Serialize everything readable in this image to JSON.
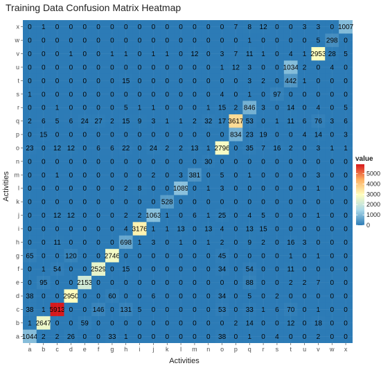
{
  "chart_data": {
    "type": "heatmap",
    "title": "Training Data Confusion Matrix Heatmap",
    "xlabel": "Activities",
    "ylabel": "Activities",
    "x_categories": [
      "a",
      "b",
      "c",
      "d",
      "e",
      "f",
      "g",
      "h",
      "i",
      "j",
      "k",
      "l",
      "m",
      "n",
      "o",
      "p",
      "q",
      "r",
      "s",
      "t",
      "u",
      "v",
      "w",
      "x"
    ],
    "y_categories": [
      "a",
      "b",
      "c",
      "d",
      "e",
      "f",
      "g",
      "h",
      "i",
      "j",
      "k",
      "l",
      "m",
      "n",
      "o",
      "p",
      "q",
      "r",
      "s",
      "t",
      "u",
      "v",
      "w",
      "x"
    ],
    "grid": true,
    "legend": {
      "title": "value",
      "placement": "right",
      "ticks": [
        0,
        1000,
        2000,
        3000,
        4000,
        5000
      ],
      "range": [
        0,
        5913
      ],
      "colors": [
        "#2c7bb6",
        "#abd9e9",
        "#ffffbf",
        "#fdae61",
        "#d7191c"
      ]
    },
    "values": [
      [
        1044,
        2,
        2,
        26,
        0,
        0,
        33,
        1,
        0,
        0,
        0,
        0,
        0,
        0,
        38,
        0,
        1,
        0,
        4,
        0,
        0,
        2,
        0,
        0
      ],
      [
        1,
        2647,
        0,
        0,
        59,
        0,
        0,
        0,
        0,
        0,
        0,
        0,
        0,
        0,
        0,
        2,
        14,
        0,
        0,
        12,
        0,
        18,
        0,
        0
      ],
      [
        38,
        1,
        5913,
        0,
        0,
        146,
        0,
        131,
        5,
        0,
        0,
        0,
        0,
        0,
        53,
        0,
        33,
        1,
        6,
        70,
        0,
        1,
        0,
        0
      ],
      [
        38,
        0,
        0,
        2950,
        0,
        0,
        60,
        0,
        0,
        6,
        0,
        0,
        0,
        0,
        34,
        0,
        5,
        0,
        2,
        0,
        0,
        0,
        0,
        0
      ],
      [
        0,
        95,
        0,
        0,
        2153,
        0,
        0,
        0,
        0,
        0,
        0,
        0,
        0,
        0,
        0,
        0,
        88,
        0,
        0,
        2,
        2,
        7,
        0,
        0
      ],
      [
        0,
        1,
        54,
        0,
        0,
        2529,
        0,
        15,
        0,
        0,
        0,
        0,
        0,
        0,
        34,
        0,
        54,
        0,
        0,
        11,
        0,
        0,
        0,
        0
      ],
      [
        65,
        0,
        0,
        120,
        0,
        0,
        2746,
        0,
        0,
        0,
        0,
        0,
        0,
        0,
        45,
        0,
        0,
        0,
        0,
        1,
        0,
        1,
        0,
        0
      ],
      [
        0,
        0,
        11,
        0,
        0,
        0,
        0,
        698,
        1,
        3,
        0,
        1,
        0,
        1,
        2,
        0,
        9,
        2,
        0,
        16,
        3,
        0,
        0,
        0
      ],
      [
        0,
        0,
        0,
        0,
        0,
        0,
        0,
        4,
        3176,
        1,
        1,
        13,
        0,
        13,
        4,
        0,
        13,
        15,
        0,
        0,
        0,
        0,
        0,
        0
      ],
      [
        0,
        0,
        12,
        12,
        0,
        0,
        0,
        2,
        2,
        1063,
        1,
        0,
        6,
        1,
        25,
        0,
        4,
        5,
        0,
        0,
        0,
        1,
        0,
        0
      ],
      [
        0,
        0,
        0,
        0,
        0,
        0,
        0,
        0,
        0,
        0,
        528,
        0,
        0,
        0,
        0,
        0,
        0,
        0,
        0,
        0,
        0,
        0,
        0,
        0
      ],
      [
        0,
        0,
        0,
        0,
        0,
        0,
        0,
        2,
        8,
        0,
        0,
        1089,
        0,
        1,
        3,
        0,
        0,
        0,
        0,
        0,
        0,
        1,
        0,
        0
      ],
      [
        0,
        0,
        1,
        0,
        0,
        0,
        0,
        0,
        0,
        2,
        0,
        3,
        381,
        0,
        5,
        0,
        1,
        0,
        0,
        0,
        0,
        3,
        0,
        0
      ],
      [
        0,
        0,
        0,
        0,
        0,
        0,
        0,
        0,
        0,
        0,
        0,
        0,
        0,
        30,
        0,
        0,
        0,
        0,
        0,
        0,
        0,
        0,
        0,
        0
      ],
      [
        23,
        0,
        12,
        12,
        0,
        6,
        6,
        22,
        0,
        24,
        2,
        2,
        13,
        1,
        2796,
        0,
        35,
        7,
        16,
        2,
        0,
        3,
        1,
        1
      ],
      [
        0,
        15,
        0,
        0,
        0,
        0,
        0,
        0,
        0,
        0,
        0,
        0,
        0,
        0,
        0,
        834,
        23,
        19,
        0,
        0,
        4,
        14,
        0,
        3
      ],
      [
        2,
        6,
        5,
        6,
        24,
        27,
        2,
        15,
        9,
        3,
        1,
        1,
        2,
        32,
        17,
        3617,
        53,
        0,
        1,
        11,
        6,
        76,
        3,
        6
      ],
      [
        0,
        0,
        1,
        0,
        0,
        0,
        0,
        5,
        1,
        1,
        0,
        0,
        0,
        1,
        15,
        2,
        846,
        3,
        0,
        14,
        0,
        4,
        0,
        5
      ],
      [
        1,
        0,
        0,
        0,
        0,
        0,
        0,
        0,
        0,
        0,
        0,
        0,
        0,
        0,
        4,
        0,
        1,
        0,
        97,
        0,
        0,
        0,
        0,
        0
      ],
      [
        0,
        0,
        0,
        0,
        0,
        0,
        0,
        15,
        0,
        0,
        0,
        0,
        0,
        0,
        0,
        0,
        3,
        2,
        0,
        442,
        1,
        0,
        0,
        0
      ],
      [
        0,
        0,
        0,
        0,
        0,
        0,
        0,
        0,
        0,
        0,
        0,
        0,
        0,
        0,
        1,
        12,
        3,
        0,
        0,
        1034,
        2,
        0,
        4,
        0
      ],
      [
        0,
        0,
        0,
        1,
        0,
        0,
        1,
        1,
        0,
        1,
        1,
        0,
        12,
        0,
        3,
        7,
        11,
        1,
        0,
        4,
        1,
        2953,
        28,
        5
      ],
      [
        0,
        0,
        0,
        0,
        0,
        0,
        0,
        0,
        0,
        0,
        0,
        0,
        0,
        0,
        0,
        0,
        1,
        0,
        0,
        0,
        0,
        5,
        298,
        0
      ],
      [
        0,
        1,
        0,
        0,
        0,
        0,
        0,
        0,
        0,
        0,
        0,
        0,
        0,
        0,
        0,
        7,
        8,
        12,
        0,
        0,
        3,
        3,
        0,
        1007
      ]
    ]
  }
}
